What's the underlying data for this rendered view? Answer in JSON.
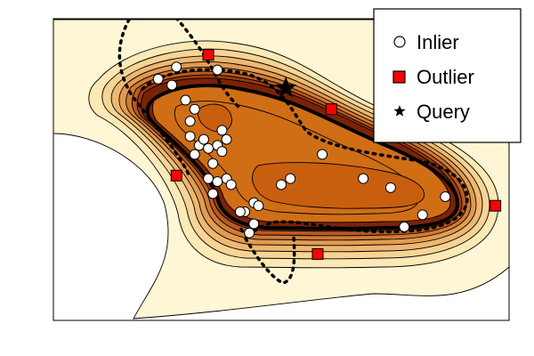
{
  "chart_data": {
    "type": "scatter",
    "title": "",
    "xlabel": "",
    "ylabel": "",
    "xlim": [
      0,
      100
    ],
    "ylim": [
      0,
      100
    ],
    "grid": false,
    "legend_position": "top-right",
    "background": "contour",
    "colors": {
      "contour_levels": [
        "#fff6d5",
        "#fde9b6",
        "#f7d495",
        "#efb872",
        "#e29b52",
        "#d17a34",
        "#bb5a1d",
        "#9c3a0e",
        "#7a2306"
      ],
      "inner_fill": "#d06e16",
      "core_fill": "#c85f0e",
      "boundary": "#000000",
      "inlier_face": "#ffffff",
      "outlier_face": "#ff0000"
    },
    "series": [
      {
        "name": "Inlier",
        "marker": "circle",
        "points": [
          {
            "x": 23,
            "y": 80
          },
          {
            "x": 26,
            "y": 78
          },
          {
            "x": 27,
            "y": 84
          },
          {
            "x": 36,
            "y": 83
          },
          {
            "x": 29,
            "y": 73
          },
          {
            "x": 30,
            "y": 66
          },
          {
            "x": 30,
            "y": 61
          },
          {
            "x": 31,
            "y": 70
          },
          {
            "x": 32,
            "y": 58
          },
          {
            "x": 31,
            "y": 55
          },
          {
            "x": 34,
            "y": 57
          },
          {
            "x": 33,
            "y": 60
          },
          {
            "x": 35,
            "y": 52
          },
          {
            "x": 36,
            "y": 58
          },
          {
            "x": 37,
            "y": 56
          },
          {
            "x": 38,
            "y": 60
          },
          {
            "x": 34,
            "y": 47
          },
          {
            "x": 36,
            "y": 46
          },
          {
            "x": 38,
            "y": 47
          },
          {
            "x": 39,
            "y": 45
          },
          {
            "x": 35,
            "y": 42
          },
          {
            "x": 42,
            "y": 36
          },
          {
            "x": 44,
            "y": 32
          },
          {
            "x": 44,
            "y": 39
          },
          {
            "x": 43,
            "y": 29
          },
          {
            "x": 41,
            "y": 36
          },
          {
            "x": 45,
            "y": 38
          },
          {
            "x": 50,
            "y": 45
          },
          {
            "x": 59,
            "y": 55
          },
          {
            "x": 68,
            "y": 47
          },
          {
            "x": 74,
            "y": 44
          },
          {
            "x": 86,
            "y": 41
          },
          {
            "x": 77,
            "y": 31
          },
          {
            "x": 81,
            "y": 35
          },
          {
            "x": 52,
            "y": 47
          },
          {
            "x": 37,
            "y": 63
          }
        ]
      },
      {
        "name": "Outlier",
        "marker": "square",
        "points": [
          {
            "x": 34,
            "y": 88
          },
          {
            "x": 61,
            "y": 70
          },
          {
            "x": 27,
            "y": 48
          },
          {
            "x": 97,
            "y": 38
          },
          {
            "x": 58,
            "y": 22
          }
        ]
      },
      {
        "name": "Query",
        "marker": "star",
        "points": [
          {
            "x": 51,
            "y": 77
          }
        ]
      }
    ]
  }
}
